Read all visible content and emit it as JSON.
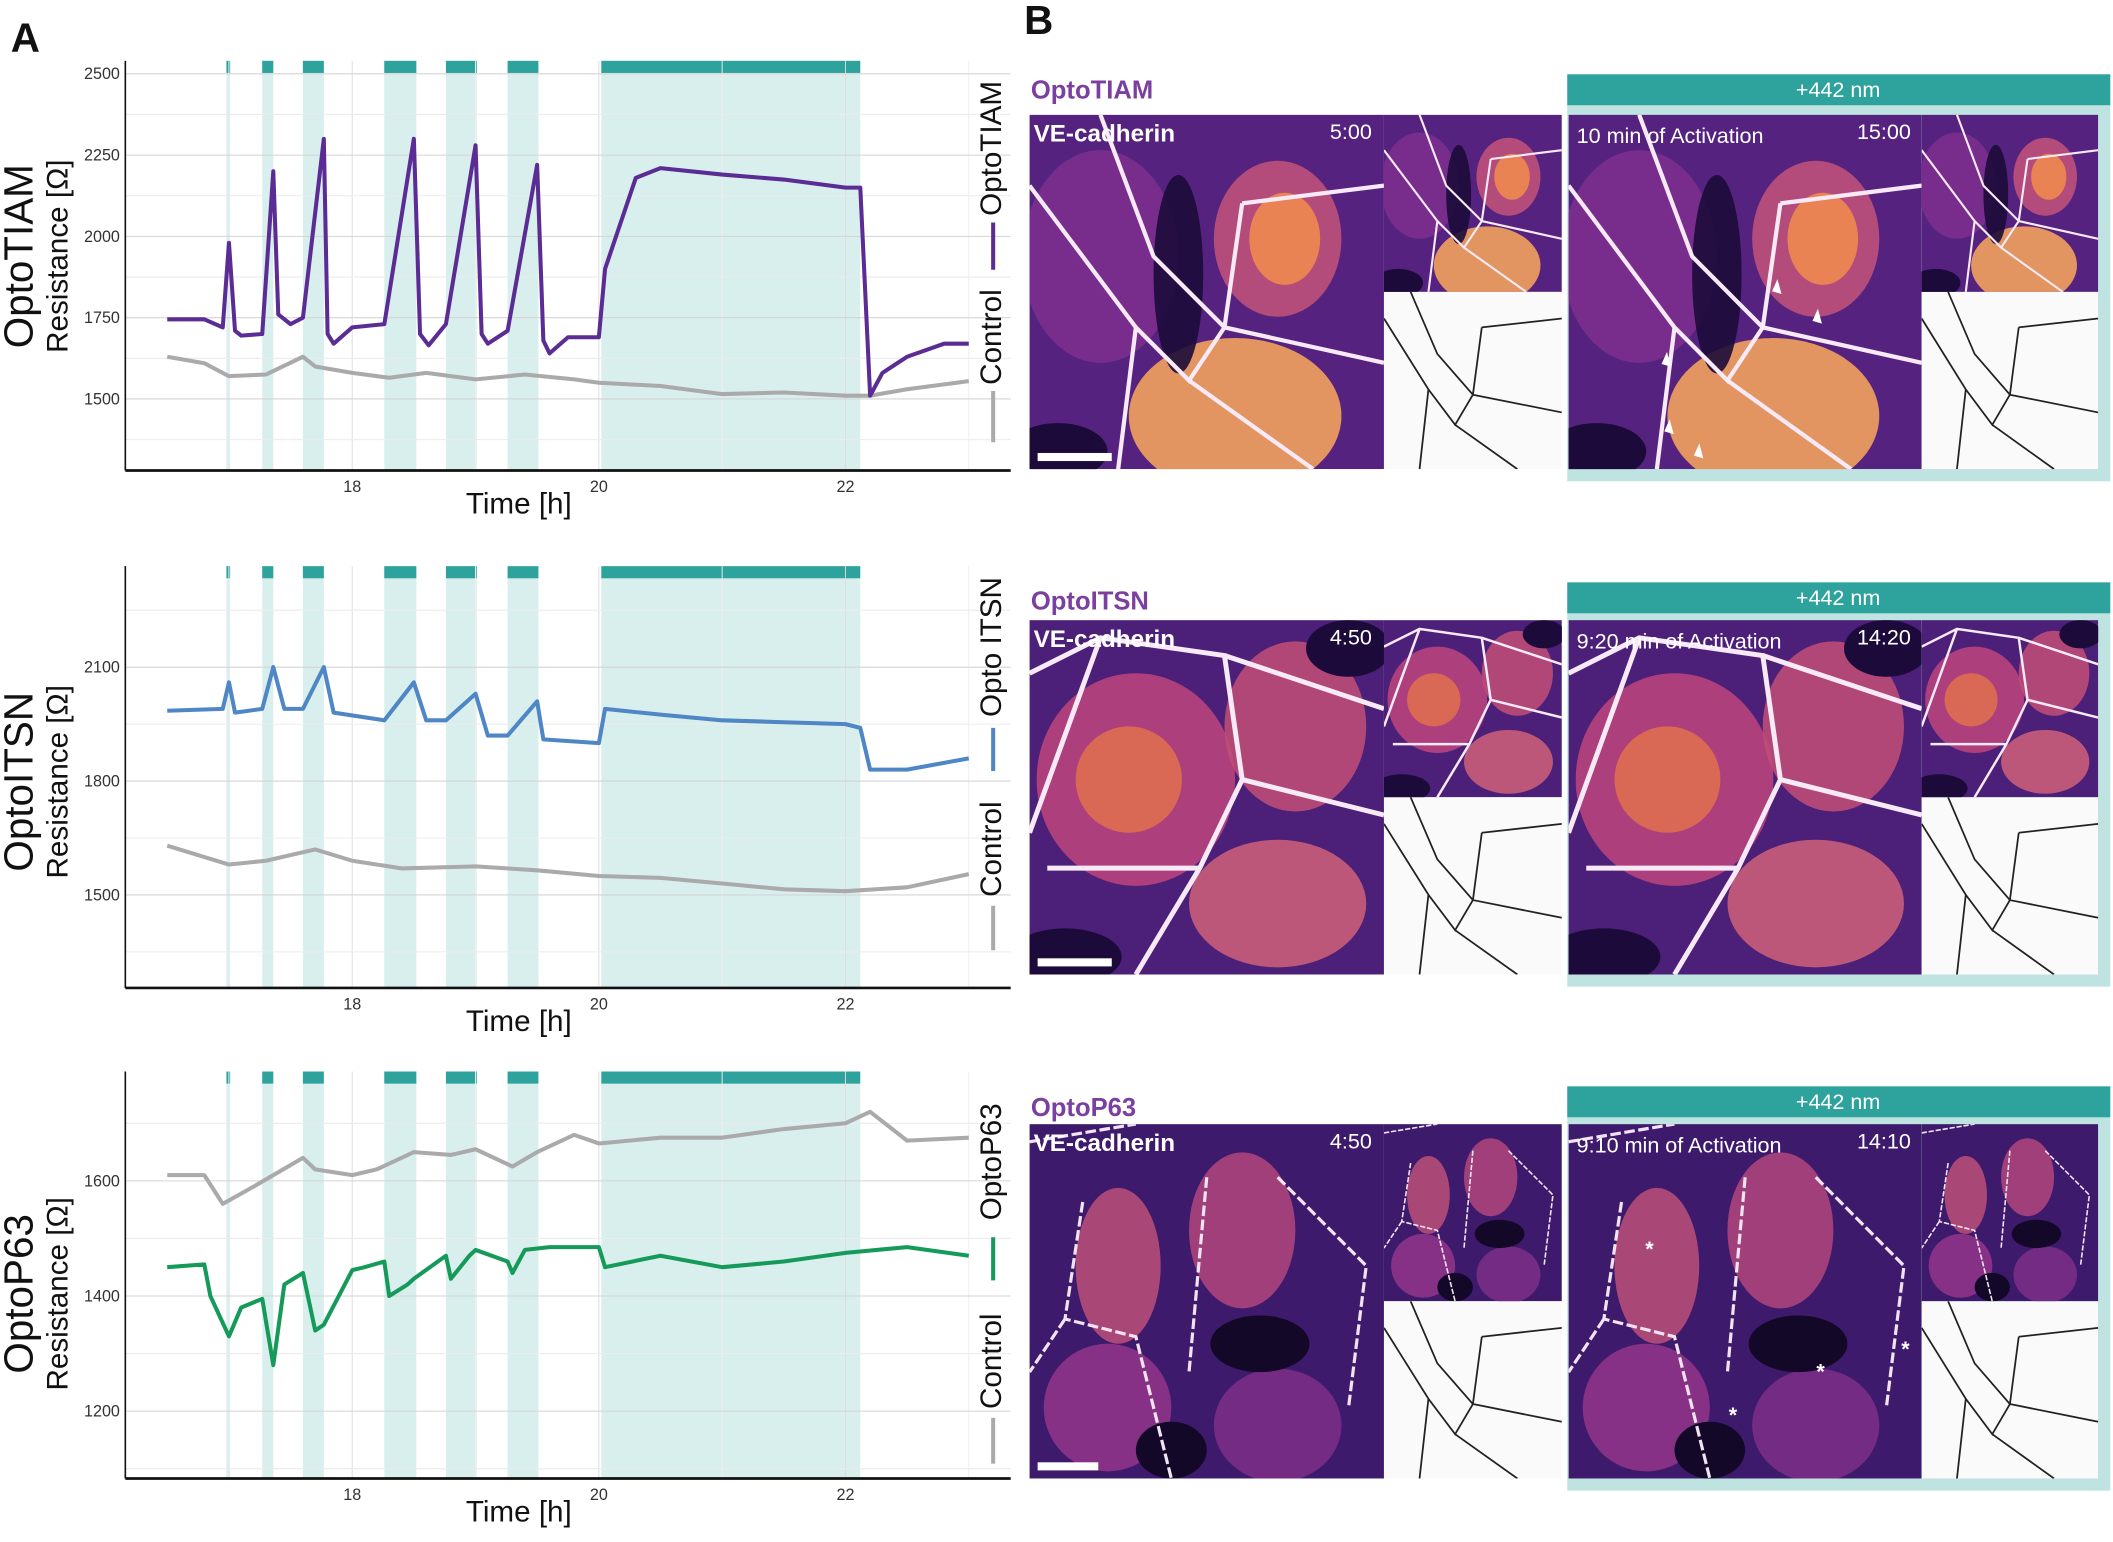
{
  "panel_a": {
    "letter": "A"
  },
  "panel_b": {
    "letter": "B"
  },
  "colors": {
    "illumination_bar": "#2ea39e",
    "illumination_band": "#d9efee",
    "control": "#aaaaaa",
    "optotiam": "#5b2c94",
    "optoitsn": "#4f86c6",
    "optop63": "#159a5a",
    "construct_title": "#7b3fa0"
  },
  "chart_data": [
    {
      "type": "line",
      "ylabel_main": "OptoTIAM",
      "ylabel": "Resistance [Ω]",
      "xlabel": "Time [h]",
      "xlim": [
        16.16,
        23.34
      ],
      "ylim": [
        1280,
        2540
      ],
      "xticks": [
        18,
        20,
        22
      ],
      "yticks": [
        1500,
        1750,
        2000,
        2250,
        2500
      ],
      "grid": true,
      "legend_position": "right",
      "illumination_intervals": [
        [
          16.98,
          17.01
        ],
        [
          17.27,
          17.36
        ],
        [
          17.6,
          17.77
        ],
        [
          18.26,
          18.52
        ],
        [
          18.76,
          19.01
        ],
        [
          19.26,
          19.51
        ],
        [
          20.02,
          22.12
        ]
      ],
      "series": [
        {
          "name": "OptoTIAM",
          "color": "#5b2c94",
          "x": [
            16.5,
            16.8,
            16.95,
            17.0,
            17.05,
            17.1,
            17.27,
            17.36,
            17.4,
            17.5,
            17.6,
            17.77,
            17.8,
            17.85,
            18.0,
            18.26,
            18.5,
            18.55,
            18.62,
            18.76,
            19.0,
            19.05,
            19.1,
            19.26,
            19.5,
            19.55,
            19.6,
            19.75,
            20.0,
            20.05,
            20.3,
            20.5,
            21.0,
            21.5,
            22.0,
            22.12,
            22.2,
            22.3,
            22.5,
            22.8,
            23.0
          ],
          "y": [
            1745,
            1745,
            1720,
            1980,
            1710,
            1695,
            1700,
            2200,
            1760,
            1730,
            1750,
            2300,
            1700,
            1670,
            1720,
            1730,
            2300,
            1700,
            1665,
            1730,
            2280,
            1700,
            1670,
            1710,
            2220,
            1680,
            1640,
            1690,
            1690,
            1900,
            2180,
            2210,
            2190,
            2175,
            2150,
            2150,
            1510,
            1580,
            1630,
            1670,
            1670
          ]
        },
        {
          "name": "Control",
          "color": "#aaaaaa",
          "x": [
            16.5,
            16.8,
            17.0,
            17.3,
            17.6,
            17.7,
            18.0,
            18.3,
            18.6,
            19.0,
            19.4,
            19.8,
            20.0,
            20.5,
            21.0,
            21.5,
            22.0,
            22.2,
            22.5,
            23.0
          ],
          "y": [
            1630,
            1610,
            1570,
            1575,
            1630,
            1600,
            1580,
            1565,
            1580,
            1560,
            1575,
            1560,
            1550,
            1540,
            1515,
            1520,
            1510,
            1510,
            1530,
            1555
          ]
        }
      ]
    },
    {
      "type": "line",
      "ylabel_main": "OptoITSN",
      "ylabel": "Resistance [Ω]",
      "xlabel": "Time [h]",
      "xlim": [
        16.16,
        23.34
      ],
      "ylim": [
        1255,
        2366
      ],
      "xticks": [
        18,
        20,
        22
      ],
      "yticks": [
        1500,
        1800,
        2100
      ],
      "grid": true,
      "legend_position": "right",
      "illumination_intervals": [
        [
          16.98,
          17.01
        ],
        [
          17.27,
          17.36
        ],
        [
          17.6,
          17.77
        ],
        [
          18.26,
          18.52
        ],
        [
          18.76,
          19.01
        ],
        [
          19.26,
          19.51
        ],
        [
          20.02,
          22.12
        ]
      ],
      "series": [
        {
          "name": "Opto ITSN",
          "color": "#4f86c6",
          "x": [
            16.5,
            16.95,
            17.0,
            17.05,
            17.27,
            17.36,
            17.45,
            17.6,
            17.77,
            17.85,
            18.26,
            18.5,
            18.6,
            18.76,
            19.0,
            19.1,
            19.26,
            19.5,
            19.55,
            20.0,
            20.05,
            20.5,
            21.0,
            21.5,
            22.0,
            22.12,
            22.2,
            22.5,
            23.0
          ],
          "y": [
            1985,
            1990,
            2060,
            1980,
            1990,
            2100,
            1990,
            1990,
            2100,
            1980,
            1960,
            2060,
            1960,
            1960,
            2030,
            1920,
            1920,
            2010,
            1910,
            1900,
            1990,
            1975,
            1960,
            1955,
            1950,
            1940,
            1830,
            1830,
            1860
          ]
        },
        {
          "name": "Control",
          "color": "#aaaaaa",
          "x": [
            16.5,
            17.0,
            17.3,
            17.7,
            18.0,
            18.4,
            19.0,
            19.5,
            20.0,
            20.5,
            21.0,
            21.5,
            22.0,
            22.5,
            23.0
          ],
          "y": [
            1630,
            1580,
            1590,
            1620,
            1590,
            1570,
            1575,
            1565,
            1550,
            1545,
            1530,
            1515,
            1510,
            1520,
            1555
          ]
        }
      ]
    },
    {
      "type": "line",
      "ylabel_main": "OptoP63",
      "ylabel": "Resistance [Ω]",
      "xlabel": "Time [h]",
      "xlim": [
        16.16,
        23.34
      ],
      "ylim": [
        1083,
        1790
      ],
      "xticks": [
        18,
        20,
        22
      ],
      "yticks": [
        1200,
        1400,
        1600
      ],
      "grid": true,
      "legend_position": "right",
      "illumination_intervals": [
        [
          16.98,
          17.01
        ],
        [
          17.27,
          17.36
        ],
        [
          17.6,
          17.77
        ],
        [
          18.26,
          18.52
        ],
        [
          18.76,
          19.01
        ],
        [
          19.26,
          19.51
        ],
        [
          20.02,
          22.12
        ]
      ],
      "series": [
        {
          "name": "OptoP63",
          "color": "#159a5a",
          "x": [
            16.5,
            16.8,
            16.85,
            17.0,
            17.1,
            17.27,
            17.36,
            17.45,
            17.6,
            17.7,
            17.77,
            18.0,
            18.1,
            18.26,
            18.3,
            18.45,
            18.5,
            18.76,
            18.8,
            18.95,
            19.0,
            19.26,
            19.3,
            19.4,
            19.6,
            20.0,
            20.05,
            20.5,
            21.0,
            21.5,
            22.0,
            22.5,
            23.0
          ],
          "y": [
            1450,
            1455,
            1400,
            1330,
            1380,
            1395,
            1280,
            1420,
            1440,
            1340,
            1350,
            1445,
            1450,
            1460,
            1400,
            1420,
            1430,
            1470,
            1430,
            1470,
            1480,
            1460,
            1440,
            1480,
            1485,
            1485,
            1450,
            1470,
            1450,
            1460,
            1475,
            1485,
            1470
          ]
        },
        {
          "name": "Control",
          "color": "#aaaaaa",
          "x": [
            16.5,
            16.8,
            16.95,
            17.2,
            17.6,
            17.7,
            18.0,
            18.2,
            18.5,
            18.8,
            19.0,
            19.3,
            19.5,
            19.8,
            20.0,
            20.5,
            21.0,
            21.5,
            22.0,
            22.2,
            22.5,
            23.0
          ],
          "y": [
            1610,
            1610,
            1560,
            1590,
            1640,
            1620,
            1610,
            1620,
            1650,
            1645,
            1655,
            1625,
            1650,
            1680,
            1665,
            1675,
            1675,
            1690,
            1700,
            1720,
            1670,
            1675
          ]
        }
      ]
    }
  ],
  "microscopy": [
    {
      "construct": "OptoTIAM",
      "stimulus": "+442 nm",
      "stain": "VE-cadherin",
      "time_before": "5:00",
      "activation": "10 min of Activation",
      "time_after": "15:00",
      "markers": "arrowheads"
    },
    {
      "construct": "OptoITSN",
      "stimulus": "+442 nm",
      "stain": "VE-cadherin",
      "time_before": "4:50",
      "activation": "9:20 min of Activation",
      "time_after": "14:20",
      "markers": "none"
    },
    {
      "construct": "OptoP63",
      "stimulus": "+442 nm",
      "stain": "VE-cadherin",
      "time_before": "4:50",
      "activation": "9:10 min of Activation",
      "time_after": "14:10",
      "markers": "asterisks",
      "asterisk": "*"
    }
  ]
}
